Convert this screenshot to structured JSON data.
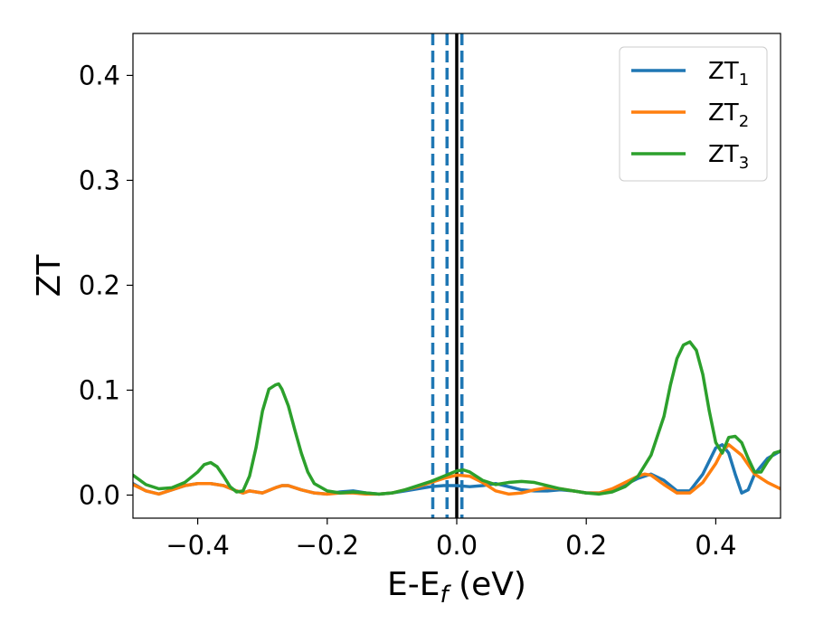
{
  "chart_data": {
    "type": "line",
    "title": "",
    "xlabel": {
      "main": "E-E",
      "sub": "f",
      "unit": " (eV)"
    },
    "ylabel": "ZT",
    "xlim": [
      -0.5,
      0.5
    ],
    "ylim": [
      -0.022,
      0.44
    ],
    "x_ticks": [
      -0.4,
      -0.2,
      0.0,
      0.2,
      0.4
    ],
    "x_tick_labels": [
      "−0.4",
      "−0.2",
      "0.0",
      "0.2",
      "0.4"
    ],
    "y_ticks": [
      0.0,
      0.1,
      0.2,
      0.3,
      0.4
    ],
    "y_tick_labels": [
      "0.0",
      "0.1",
      "0.2",
      "0.3",
      "0.4"
    ],
    "grid": false,
    "legend_position": "top-right",
    "vertical_lines": [
      {
        "x": -0.037,
        "style": "dashed",
        "color": "#1f77b4"
      },
      {
        "x": -0.015,
        "style": "dashed",
        "color": "#1f77b4"
      },
      {
        "x": 0.008,
        "style": "dashed",
        "color": "#1f77b4"
      },
      {
        "x": 0.0,
        "style": "solid",
        "color": "#000000"
      }
    ],
    "series": [
      {
        "name": "ZT",
        "subscript": "1",
        "color": "#1f77b4",
        "x": [
          -0.5,
          -0.48,
          -0.46,
          -0.44,
          -0.42,
          -0.4,
          -0.38,
          -0.36,
          -0.34,
          -0.33,
          -0.32,
          -0.3,
          -0.28,
          -0.27,
          -0.26,
          -0.24,
          -0.22,
          -0.2,
          -0.18,
          -0.16,
          -0.14,
          -0.12,
          -0.1,
          -0.08,
          -0.06,
          -0.04,
          -0.02,
          0.0,
          0.02,
          0.04,
          0.06,
          0.08,
          0.1,
          0.12,
          0.14,
          0.16,
          0.18,
          0.2,
          0.22,
          0.24,
          0.26,
          0.28,
          0.3,
          0.32,
          0.34,
          0.36,
          0.38,
          0.4,
          0.41,
          0.42,
          0.43,
          0.44,
          0.45,
          0.46,
          0.48,
          0.5
        ],
        "y": [
          0.011,
          0.004,
          0.001,
          0.005,
          0.009,
          0.011,
          0.011,
          0.009,
          0.004,
          0.002,
          0.004,
          0.002,
          0.007,
          0.009,
          0.009,
          0.005,
          0.002,
          0.001,
          0.003,
          0.004,
          0.002,
          0.001,
          0.002,
          0.004,
          0.006,
          0.008,
          0.009,
          0.009,
          0.008,
          0.009,
          0.011,
          0.008,
          0.005,
          0.004,
          0.004,
          0.005,
          0.004,
          0.002,
          0.002,
          0.005,
          0.01,
          0.016,
          0.02,
          0.014,
          0.004,
          0.004,
          0.02,
          0.045,
          0.048,
          0.04,
          0.02,
          0.002,
          0.005,
          0.02,
          0.035,
          0.042
        ]
      },
      {
        "name": "ZT",
        "subscript": "2",
        "color": "#ff7f0e",
        "x": [
          -0.5,
          -0.48,
          -0.46,
          -0.44,
          -0.42,
          -0.4,
          -0.38,
          -0.36,
          -0.34,
          -0.33,
          -0.32,
          -0.3,
          -0.28,
          -0.27,
          -0.26,
          -0.24,
          -0.22,
          -0.2,
          -0.18,
          -0.16,
          -0.14,
          -0.12,
          -0.1,
          -0.08,
          -0.06,
          -0.04,
          -0.02,
          0.0,
          0.02,
          0.04,
          0.06,
          0.08,
          0.1,
          0.12,
          0.14,
          0.16,
          0.18,
          0.2,
          0.22,
          0.24,
          0.26,
          0.28,
          0.29,
          0.3,
          0.32,
          0.34,
          0.36,
          0.38,
          0.4,
          0.41,
          0.42,
          0.44,
          0.46,
          0.48,
          0.5
        ],
        "y": [
          0.01,
          0.004,
          0.001,
          0.005,
          0.009,
          0.011,
          0.011,
          0.009,
          0.004,
          0.002,
          0.004,
          0.002,
          0.007,
          0.009,
          0.009,
          0.005,
          0.002,
          0.001,
          0.002,
          0.002,
          0.001,
          0.001,
          0.002,
          0.005,
          0.008,
          0.012,
          0.016,
          0.019,
          0.018,
          0.012,
          0.004,
          0.001,
          0.002,
          0.005,
          0.007,
          0.006,
          0.004,
          0.002,
          0.002,
          0.006,
          0.012,
          0.018,
          0.02,
          0.019,
          0.01,
          0.002,
          0.002,
          0.012,
          0.03,
          0.042,
          0.048,
          0.038,
          0.02,
          0.012,
          0.006
        ]
      },
      {
        "name": "ZT",
        "subscript": "3",
        "color": "#2ca02c",
        "x": [
          -0.5,
          -0.48,
          -0.46,
          -0.44,
          -0.42,
          -0.4,
          -0.39,
          -0.38,
          -0.37,
          -0.36,
          -0.35,
          -0.34,
          -0.33,
          -0.32,
          -0.31,
          -0.3,
          -0.29,
          -0.28,
          -0.275,
          -0.27,
          -0.26,
          -0.25,
          -0.24,
          -0.23,
          -0.22,
          -0.2,
          -0.18,
          -0.16,
          -0.14,
          -0.12,
          -0.1,
          -0.08,
          -0.06,
          -0.04,
          -0.02,
          0.0,
          0.01,
          0.02,
          0.04,
          0.06,
          0.08,
          0.1,
          0.12,
          0.14,
          0.16,
          0.18,
          0.2,
          0.22,
          0.24,
          0.26,
          0.28,
          0.3,
          0.32,
          0.33,
          0.34,
          0.35,
          0.36,
          0.37,
          0.38,
          0.39,
          0.4,
          0.41,
          0.42,
          0.43,
          0.44,
          0.45,
          0.46,
          0.47,
          0.48,
          0.49,
          0.5
        ],
        "y": [
          0.019,
          0.01,
          0.006,
          0.007,
          0.012,
          0.022,
          0.029,
          0.031,
          0.027,
          0.018,
          0.008,
          0.003,
          0.004,
          0.018,
          0.045,
          0.08,
          0.101,
          0.105,
          0.106,
          0.101,
          0.085,
          0.062,
          0.04,
          0.022,
          0.011,
          0.004,
          0.002,
          0.003,
          0.002,
          0.001,
          0.002,
          0.005,
          0.009,
          0.013,
          0.018,
          0.023,
          0.024,
          0.022,
          0.014,
          0.01,
          0.012,
          0.013,
          0.012,
          0.009,
          0.006,
          0.004,
          0.002,
          0.001,
          0.003,
          0.008,
          0.018,
          0.038,
          0.075,
          0.105,
          0.13,
          0.143,
          0.146,
          0.138,
          0.115,
          0.08,
          0.05,
          0.04,
          0.055,
          0.056,
          0.05,
          0.035,
          0.022,
          0.022,
          0.032,
          0.04,
          0.042
        ]
      }
    ]
  }
}
